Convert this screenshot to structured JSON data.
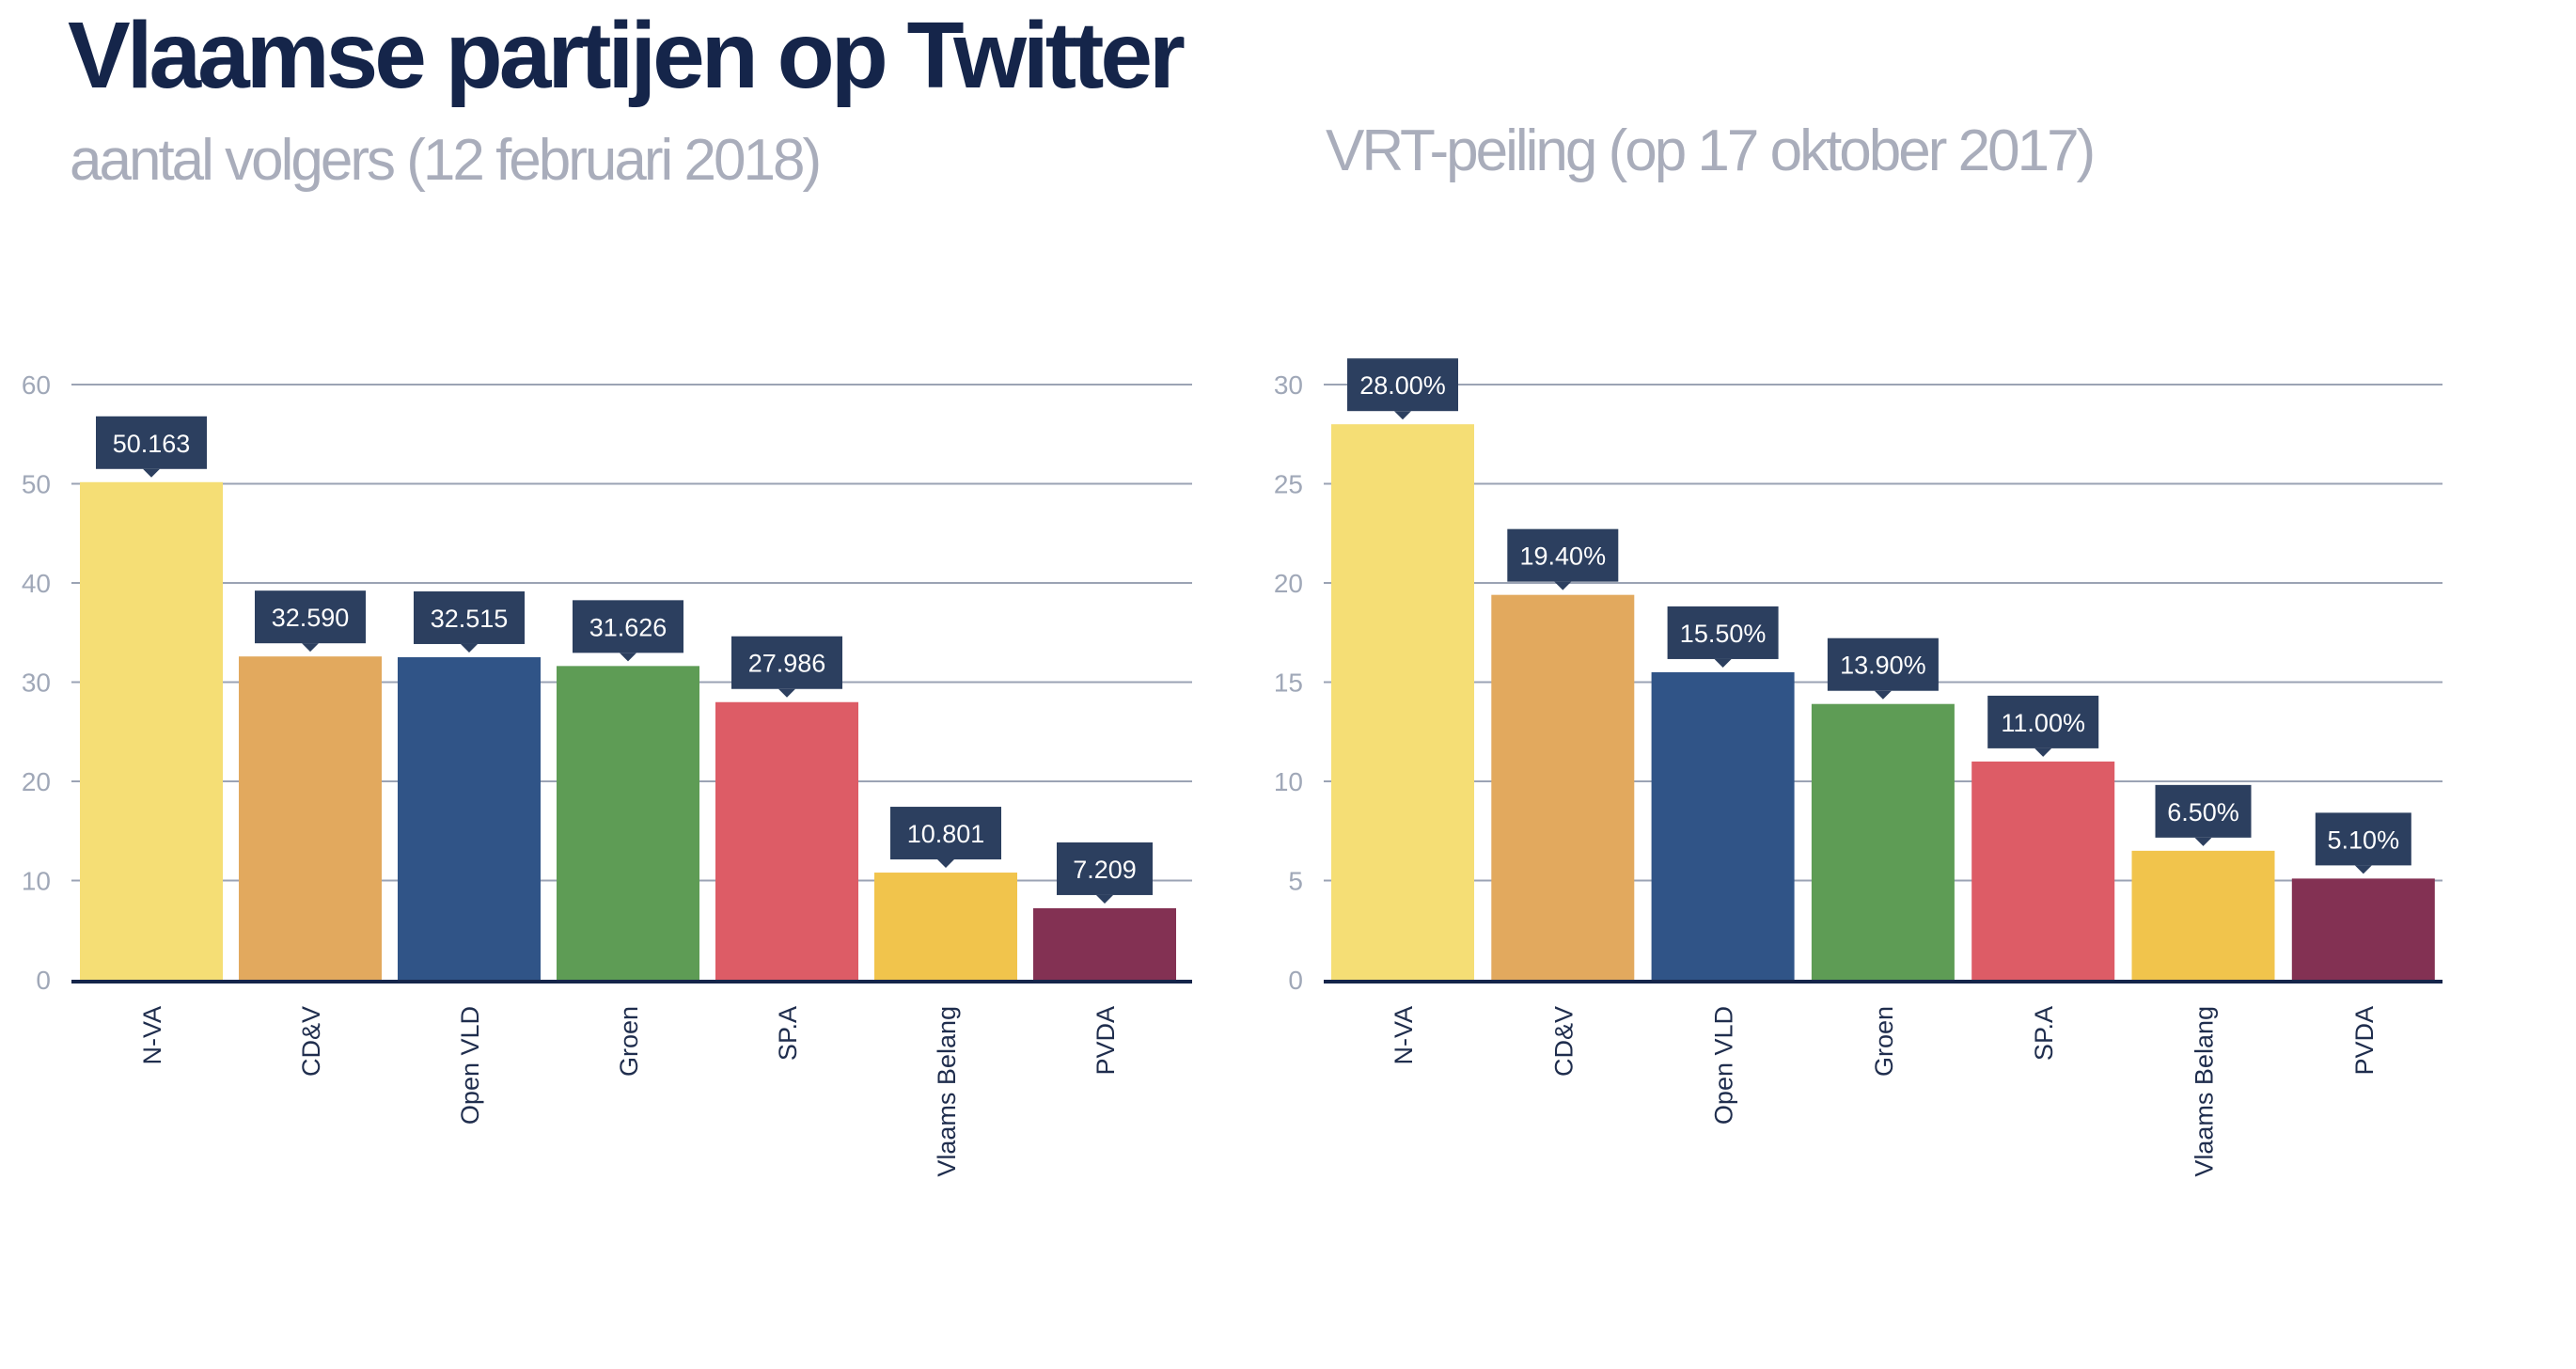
{
  "title": "Vlaamse partijen op Twitter",
  "chart_data": [
    {
      "type": "bar",
      "title": "aantal volgers (12 februari 2018)",
      "categories": [
        "N-VA",
        "CD&V",
        "Open VLD",
        "Groen",
        "SP.A",
        "Vlaams Belang",
        "PVDA"
      ],
      "values": [
        50.163,
        32.59,
        32.515,
        31.626,
        27.986,
        10.801,
        7.209
      ],
      "data_labels": [
        "50.163",
        "32.590",
        "32.515",
        "31.626",
        "27.986",
        "10.801",
        "7.209"
      ],
      "colors": [
        "#f5de75",
        "#e2a95e",
        "#305487",
        "#5e9c55",
        "#dd5c66",
        "#f1c44c",
        "#833153"
      ],
      "yticks": [
        0,
        10,
        20,
        30,
        40,
        50,
        60
      ],
      "ylim": [
        0,
        60
      ],
      "xlabel": "",
      "ylabel": "",
      "grid": true
    },
    {
      "type": "bar",
      "title": "VRT-peiling (op 17 oktober 2017)",
      "categories": [
        "N-VA",
        "CD&V",
        "Open VLD",
        "Groen",
        "SP.A",
        "Vlaams Belang",
        "PVDA"
      ],
      "values": [
        28.0,
        19.4,
        15.5,
        13.9,
        11.0,
        6.5,
        5.1
      ],
      "data_labels": [
        "28.00%",
        "19.40%",
        "15.50%",
        "13.90%",
        "11.00%",
        "6.50%",
        "5.10%"
      ],
      "colors": [
        "#f5de75",
        "#e2a95e",
        "#305487",
        "#5e9c55",
        "#dd5c66",
        "#f1c44c",
        "#833153"
      ],
      "yticks": [
        0,
        5,
        10,
        15,
        20,
        25,
        30
      ],
      "ylim": [
        0,
        30
      ],
      "xlabel": "",
      "ylabel": "",
      "grid": true
    }
  ]
}
